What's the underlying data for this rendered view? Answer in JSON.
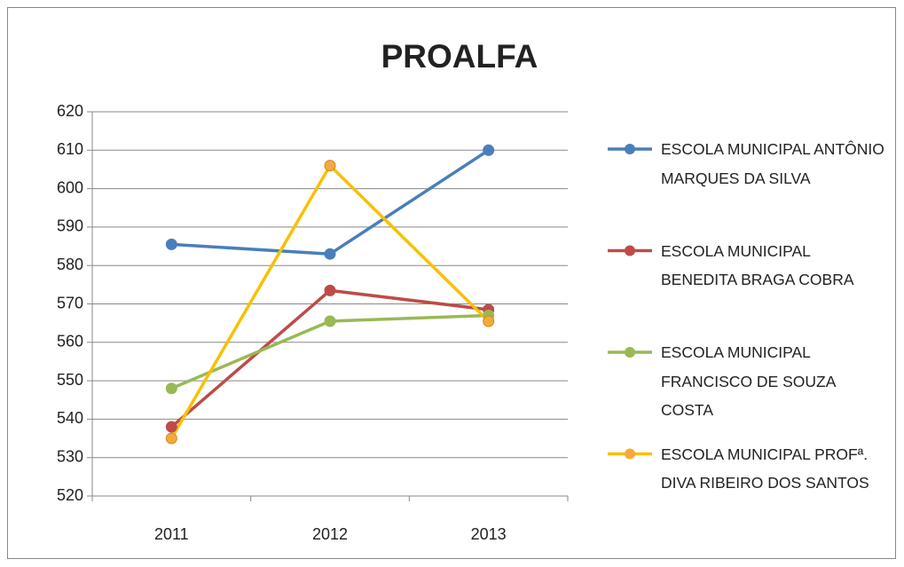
{
  "chart_data": {
    "type": "line",
    "title": "PROALFA",
    "categories": [
      "2011",
      "2012",
      "2013"
    ],
    "series": [
      {
        "name": "ESCOLA MUNICIPAL ANTÔNIO MARQUES DA SILVA",
        "color": "#4a7ebb",
        "values": [
          585.5,
          583,
          610
        ]
      },
      {
        "name": "ESCOLA MUNICIPAL BENEDITA BRAGA COBRA",
        "color": "#be4b48",
        "values": [
          538,
          573.5,
          568.5
        ]
      },
      {
        "name": "ESCOLA MUNICIPAL FRANCISCO DE SOUZA COSTA",
        "color": "#98b954",
        "values": [
          548,
          565.5,
          567
        ]
      },
      {
        "name": "ESCOLA MUNICIPAL PROFª. DIVA RIBEIRO DOS SANTOS",
        "color": "#f9c000",
        "marker_color": "#f6a93b",
        "values": [
          535,
          606,
          565.5
        ]
      }
    ],
    "ylim": [
      520,
      620
    ],
    "yticks": [
      520,
      530,
      540,
      550,
      560,
      570,
      580,
      590,
      600,
      610,
      620
    ],
    "grid": true,
    "legend": "right"
  }
}
